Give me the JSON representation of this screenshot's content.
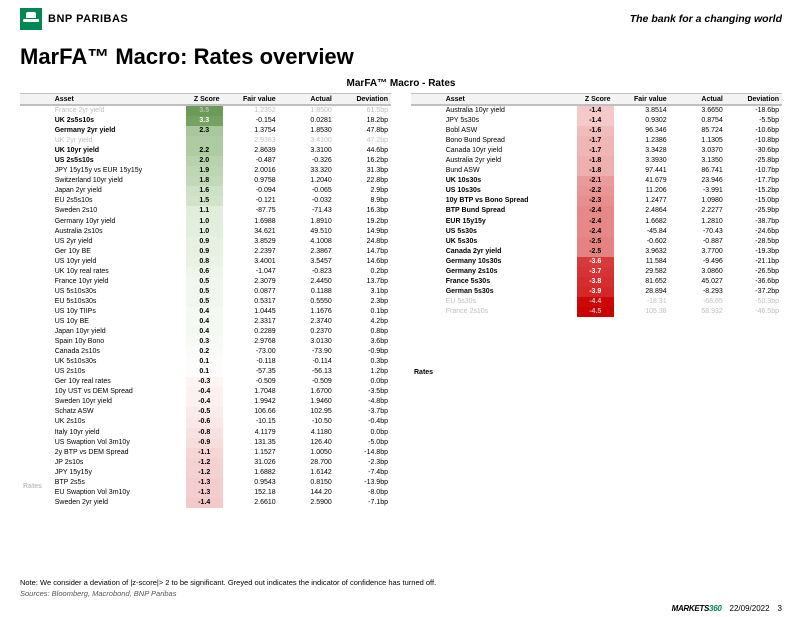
{
  "header": {
    "brand": "BNP PARIBAS",
    "tagline": "The bank for a changing world"
  },
  "title": "MarFA™ Macro: Rates overview",
  "panel_title": "MarFA™ Macro - Rates",
  "side_label": "Rates",
  "columns": [
    "Asset",
    "Z Score",
    "Fair value",
    "Actual",
    "Deviation"
  ],
  "zscale": {
    "min": -4.5,
    "max": 4.5,
    "pos_mid": "#d9ead3",
    "pos_hi": "#38761d",
    "neg_mid": "#f4cccc",
    "neg_hi": "#cc0000",
    "zero": "#ffffff"
  },
  "left": [
    {
      "asset": "France 2yr yield",
      "z": 3.5,
      "fv": "1.2352",
      "act": "1.8500",
      "dev": "61.5bp",
      "grey": true
    },
    {
      "asset": "UK 2s5s10s",
      "z": 3.3,
      "fv": "-0.154",
      "act": "0.0281",
      "dev": "18.2bp",
      "bold": true
    },
    {
      "asset": "Germany 2yr yield",
      "z": 2.3,
      "fv": "1.3754",
      "act": "1.8530",
      "dev": "47.8bp",
      "bold": true
    },
    {
      "asset": "UK 2yr yield",
      "z": 2.2,
      "fv": "2.9383",
      "act": "3.4100",
      "dev": "47.2bp",
      "grey": true
    },
    {
      "asset": "UK 10yr yield",
      "z": 2.2,
      "fv": "2.8639",
      "act": "3.3100",
      "dev": "44.6bp",
      "bold": true
    },
    {
      "asset": "US 2s5s10s",
      "z": 2.0,
      "fv": "-0.487",
      "act": "-0.326",
      "dev": "16.2bp",
      "bold": true
    },
    {
      "asset": "JPY 15y15y vs EUR 15y15y",
      "z": 1.9,
      "fv": "2.0016",
      "act": "33.320",
      "dev": "31.3bp"
    },
    {
      "asset": "Switzerland 10yr yield",
      "z": 1.8,
      "fv": "0.9758",
      "act": "1.2040",
      "dev": "22.8bp"
    },
    {
      "asset": "Japan 2yr yield",
      "z": 1.6,
      "fv": "-0.094",
      "act": "-0.065",
      "dev": "2.9bp"
    },
    {
      "asset": "EU 2s5s10s",
      "z": 1.5,
      "fv": "-0.121",
      "act": "-0.032",
      "dev": "8.9bp"
    },
    {
      "asset": "Sweden 2s10",
      "z": 1.1,
      "fv": "-87.75",
      "act": "-71.43",
      "dev": "16.3bp"
    },
    {
      "asset": "Germany 10yr yield",
      "z": 1.0,
      "fv": "1.6988",
      "act": "1.8910",
      "dev": "19.2bp"
    },
    {
      "asset": "Australia  2s10s",
      "z": 1.0,
      "fv": "34.621",
      "act": "49.510",
      "dev": "14.9bp"
    },
    {
      "asset": "US 2yr yield",
      "z": 0.9,
      "fv": "3.8529",
      "act": "4.1008",
      "dev": "24.8bp"
    },
    {
      "asset": "Ger 10y BE",
      "z": 0.9,
      "fv": "2.2397",
      "act": "2.3867",
      "dev": "14.7bp"
    },
    {
      "asset": "US 10yr yield",
      "z": 0.8,
      "fv": "3.4001",
      "act": "3.5457",
      "dev": "14.6bp"
    },
    {
      "asset": "UK 10y real rates",
      "z": 0.6,
      "fv": "-1.047",
      "act": "-0.823",
      "dev": "0.2bp"
    },
    {
      "asset": "France 10yr yield",
      "z": 0.5,
      "fv": "2.3079",
      "act": "2.4450",
      "dev": "13.7bp"
    },
    {
      "asset": "US 5s10s30s",
      "z": 0.5,
      "fv": "0.0877",
      "act": "0.1188",
      "dev": "3.1bp"
    },
    {
      "asset": "EU 5s10s30s",
      "z": 0.5,
      "fv": "0.5317",
      "act": "0.5550",
      "dev": "2.3bp"
    },
    {
      "asset": "US 10y TIIPs",
      "z": 0.4,
      "fv": "1.0445",
      "act": "1.1676",
      "dev": "0.1bp"
    },
    {
      "asset": "US 10y BE",
      "z": 0.4,
      "fv": "2.3317",
      "act": "2.3740",
      "dev": "4.2bp"
    },
    {
      "asset": "Japan 10yr yield",
      "z": 0.4,
      "fv": "0.2289",
      "act": "0.2370",
      "dev": "0.8bp"
    },
    {
      "asset": "Spain 10y Bono",
      "z": 0.3,
      "fv": "2.9768",
      "act": "3.0130",
      "dev": "3.6bp"
    },
    {
      "asset": "Canada  2s10s",
      "z": 0.2,
      "fv": "-73.00",
      "act": "-73.90",
      "dev": "-0.9bp"
    },
    {
      "asset": "UK 5s10s30s",
      "z": 0.1,
      "fv": "-0.118",
      "act": "-0.114",
      "dev": "0.3bp"
    },
    {
      "asset": "US 2s10s",
      "z": 0.1,
      "fv": "-57.35",
      "act": "-56.13",
      "dev": "1.2bp"
    },
    {
      "asset": "Ger 10y real rates",
      "z": -0.3,
      "fv": "-0.509",
      "act": "-0.509",
      "dev": "0.0bp"
    },
    {
      "asset": "10y UST vs DEM Spread",
      "z": -0.4,
      "fv": "1.7048",
      "act": "1.6700",
      "dev": "-3.5bp"
    },
    {
      "asset": "Sweden 10yr yield",
      "z": -0.4,
      "fv": "1.9942",
      "act": "1.9460",
      "dev": "-4.8bp"
    },
    {
      "asset": "Schatz ASW",
      "z": -0.5,
      "fv": "106.66",
      "act": "102.95",
      "dev": "-3.7bp"
    },
    {
      "asset": "UK  2s10s",
      "z": -0.6,
      "fv": "-10.15",
      "act": "-10.50",
      "dev": "-0.4bp"
    },
    {
      "asset": "Italy 10yr yield",
      "z": -0.8,
      "fv": "4.1179",
      "act": "4.1180",
      "dev": "0.0bp"
    },
    {
      "asset": "US Swaption Vol 3m10y",
      "z": -0.9,
      "fv": "131.35",
      "act": "126.40",
      "dev": "-5.0bp"
    },
    {
      "asset": "2y BTP vs DEM Spread",
      "z": -1.1,
      "fv": "1.1527",
      "act": "1.0050",
      "dev": "-14.8bp"
    },
    {
      "asset": "JP 2s10s",
      "z": -1.2,
      "fv": "31.026",
      "act": "28.700",
      "dev": "-2.3bp"
    },
    {
      "asset": "JPY 15y15y",
      "z": -1.2,
      "fv": "1.6882",
      "act": "1.6142",
      "dev": "-7.4bp"
    },
    {
      "asset": "BTP 2s5s",
      "z": -1.3,
      "fv": "0.9543",
      "act": "0.8150",
      "dev": "-13.9bp"
    },
    {
      "asset": "EU Swaption Vol 3m10y",
      "z": -1.3,
      "fv": "152.18",
      "act": "144.20",
      "dev": "-8.0bp"
    },
    {
      "asset": "Sweden 2yr yield",
      "z": -1.4,
      "fv": "2.6610",
      "act": "2.5900",
      "dev": "-7.1bp"
    }
  ],
  "right": [
    {
      "asset": "Australia 10yr yield",
      "z": -1.4,
      "fv": "3.8514",
      "act": "3.6650",
      "dev": "-18.6bp"
    },
    {
      "asset": "JPY 5s30s",
      "z": -1.4,
      "fv": "0.9302",
      "act": "0.8754",
      "dev": "-5.5bp"
    },
    {
      "asset": "Bobl ASW",
      "z": -1.6,
      "fv": "96.346",
      "act": "85.724",
      "dev": "-10.6bp"
    },
    {
      "asset": "Bono Bund Spread",
      "z": -1.7,
      "fv": "1.2386",
      "act": "1.1305",
      "dev": "-10.8bp"
    },
    {
      "asset": "Canada 10yr yield",
      "z": -1.7,
      "fv": "3.3428",
      "act": "3.0370",
      "dev": "-30.6bp"
    },
    {
      "asset": "Australia 2yr yield",
      "z": -1.8,
      "fv": "3.3930",
      "act": "3.1350",
      "dev": "-25.8bp"
    },
    {
      "asset": "Bund ASW",
      "z": -1.8,
      "fv": "97.441",
      "act": "86.741",
      "dev": "-10.7bp"
    },
    {
      "asset": "UK 10s30s",
      "z": -2.1,
      "fv": "41.679",
      "act": "23.946",
      "dev": "-17.7bp",
      "bold": true
    },
    {
      "asset": "US 10s30s",
      "z": -2.2,
      "fv": "11.206",
      "act": "-3.991",
      "dev": "-15.2bp",
      "bold": true
    },
    {
      "asset": "10y BTP vs Bono Spread",
      "z": -2.3,
      "fv": "1.2477",
      "act": "1.0980",
      "dev": "-15.0bp",
      "bold": true
    },
    {
      "asset": "BTP Bund Spread",
      "z": -2.4,
      "fv": "2.4864",
      "act": "2.2277",
      "dev": "-25.9bp",
      "bold": true
    },
    {
      "asset": "EUR 15y15y",
      "z": -2.4,
      "fv": "1.6682",
      "act": "1.2810",
      "dev": "-38.7bp",
      "bold": true
    },
    {
      "asset": "US 5s30s",
      "z": -2.4,
      "fv": "-45.84",
      "act": "-70.43",
      "dev": "-24.6bp",
      "bold": true
    },
    {
      "asset": "UK 5s30s",
      "z": -2.5,
      "fv": "-0.602",
      "act": "-0.887",
      "dev": "-28.5bp",
      "bold": true
    },
    {
      "asset": "Canada 2yr yield",
      "z": -2.5,
      "fv": "3.9632",
      "act": "3.7700",
      "dev": "-19.3bp",
      "bold": true
    },
    {
      "asset": "Germany 10s30s",
      "z": -3.6,
      "fv": "11.584",
      "act": "-9.496",
      "dev": "-21.1bp",
      "bold": true
    },
    {
      "asset": "Germany 2s10s",
      "z": -3.7,
      "fv": "29.582",
      "act": "3.0860",
      "dev": "-26.5bp",
      "bold": true
    },
    {
      "asset": "France 5s30s",
      "z": -3.8,
      "fv": "81.652",
      "act": "45.027",
      "dev": "-36.6bp",
      "bold": true
    },
    {
      "asset": "German 5s30s",
      "z": -3.9,
      "fv": "28.894",
      "act": "-8.293",
      "dev": "-37.2bp",
      "bold": true
    },
    {
      "asset": "EU 5s30s",
      "z": -4.4,
      "fv": "-18.31",
      "act": "-68.65",
      "dev": "-50.3bp",
      "grey": true
    },
    {
      "asset": "France  2s10s",
      "z": -4.5,
      "fv": "105.38",
      "act": "58.932",
      "dev": "-46.5bp",
      "grey": true
    }
  ],
  "notes": {
    "line1": "Note: We consider a deviation of |z-score|> 2  to be significant. Greyed out indicates the indicator of confidence has turned off.",
    "line2": "Sources: Bloomberg, Macrobond, BNP Paribas"
  },
  "footer": {
    "m360_a": "MARKETS",
    "m360_b": "360",
    "date": "22/09/2022",
    "page": "3"
  }
}
